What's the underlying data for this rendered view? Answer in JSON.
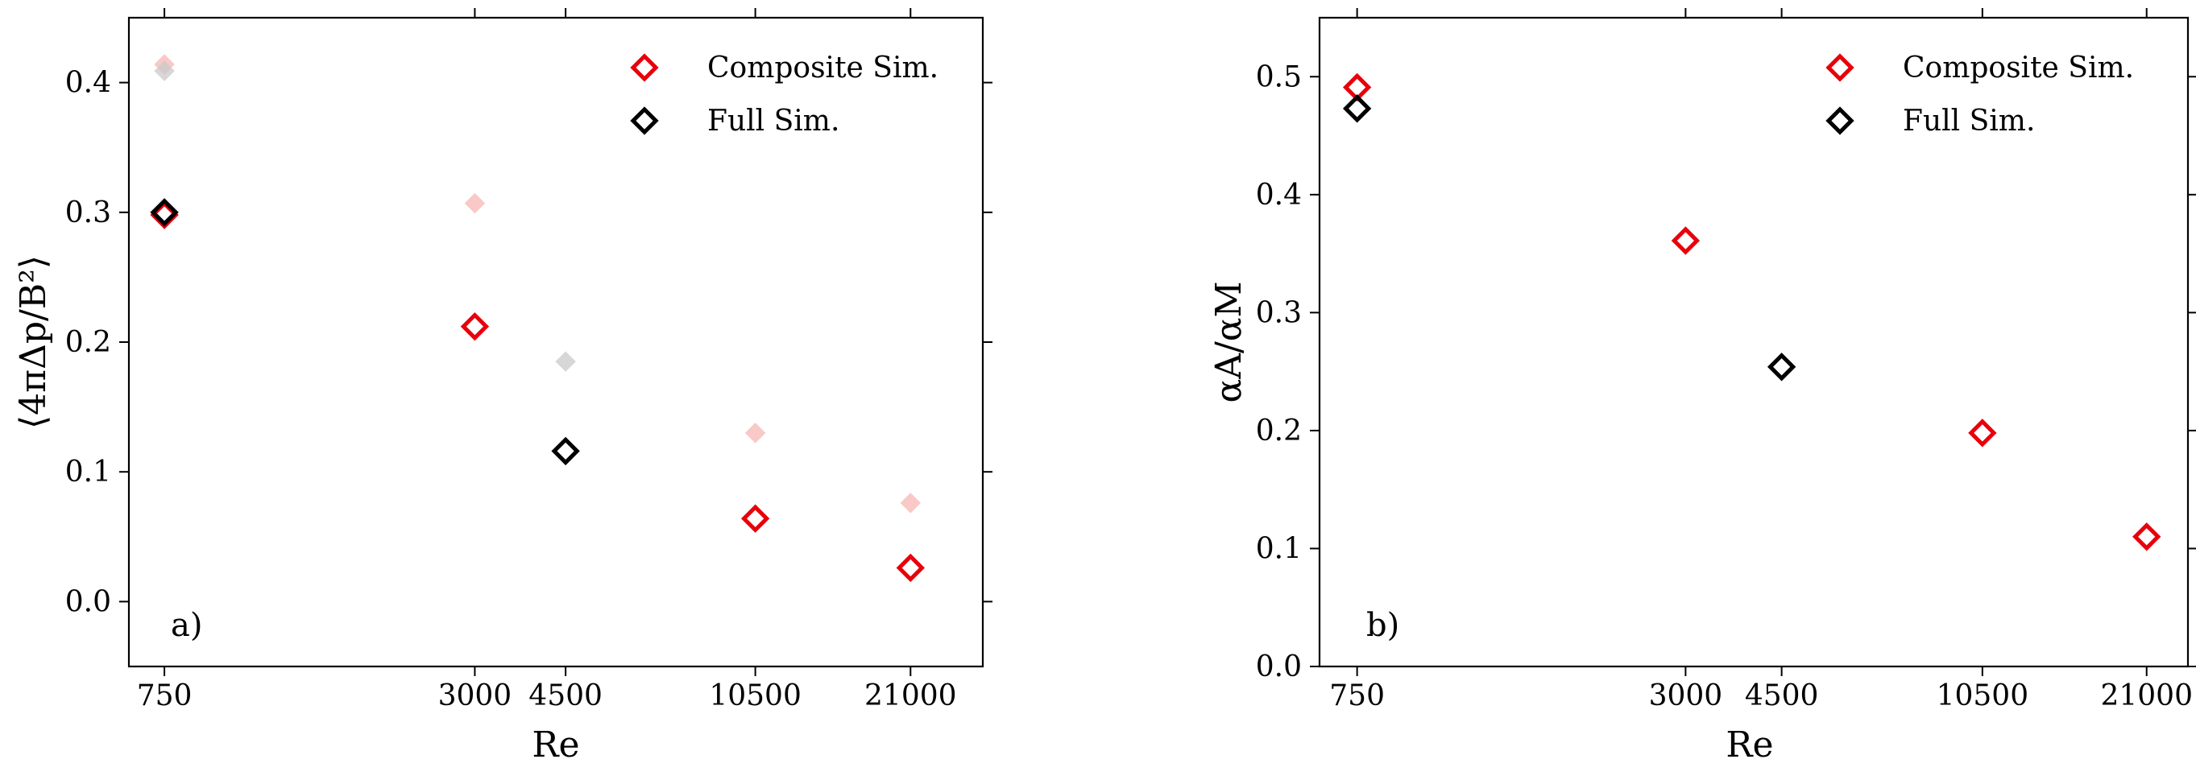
{
  "chart_data": [
    {
      "type": "scatter",
      "panel_label": "a)",
      "xlabel": "Re",
      "ylabel": "⟨4πΔp/B²⟩",
      "x_ticks": [
        750,
        3000,
        4500,
        10500,
        21000
      ],
      "xscale": "log",
      "xlim": [
        640,
        29000
      ],
      "ylim": [
        -0.05,
        0.45
      ],
      "y_ticks": [
        "0.0",
        "0.1",
        "0.2",
        "0.3",
        "0.4"
      ],
      "legend_position": "top-right",
      "series": [
        {
          "name": "Composite Sim.",
          "color": "#e8000b",
          "points": [
            {
              "x": 750,
              "y": 0.298
            },
            {
              "x": 3000,
              "y": 0.212
            },
            {
              "x": 10500,
              "y": 0.064
            },
            {
              "x": 21000,
              "y": 0.026
            }
          ]
        },
        {
          "name": "Full Sim.",
          "color": "#000000",
          "points": [
            {
              "x": 750,
              "y": 0.3
            },
            {
              "x": 4500,
              "y": 0.116
            }
          ]
        }
      ],
      "faded_markers": [
        {
          "color": "#f6b7b3",
          "points": [
            {
              "x": 750,
              "y": 0.414
            },
            {
              "x": 3000,
              "y": 0.307
            },
            {
              "x": 10500,
              "y": 0.13
            },
            {
              "x": 21000,
              "y": 0.076
            }
          ]
        },
        {
          "color": "#c9c9c9",
          "points": [
            {
              "x": 750,
              "y": 0.409
            },
            {
              "x": 4500,
              "y": 0.185
            }
          ]
        }
      ]
    },
    {
      "type": "scatter",
      "panel_label": "b)",
      "xlabel": "Re",
      "ylabel": "αA/αM",
      "x_ticks": [
        750,
        3000,
        4500,
        10500,
        21000
      ],
      "xscale": "log",
      "xlim": [
        640,
        25000
      ],
      "ylim": [
        0,
        0.55
      ],
      "y_ticks": [
        "0.0",
        "0.1",
        "0.2",
        "0.3",
        "0.4",
        "0.5"
      ],
      "legend_position": "top-right",
      "series": [
        {
          "name": "Composite Sim.",
          "color": "#e8000b",
          "points": [
            {
              "x": 750,
              "y": 0.491
            },
            {
              "x": 3000,
              "y": 0.361
            },
            {
              "x": 10500,
              "y": 0.198
            },
            {
              "x": 21000,
              "y": 0.11
            }
          ]
        },
        {
          "name": "Full Sim.",
          "color": "#000000",
          "points": [
            {
              "x": 750,
              "y": 0.473
            },
            {
              "x": 4500,
              "y": 0.254
            }
          ]
        }
      ],
      "faded_markers": []
    }
  ]
}
